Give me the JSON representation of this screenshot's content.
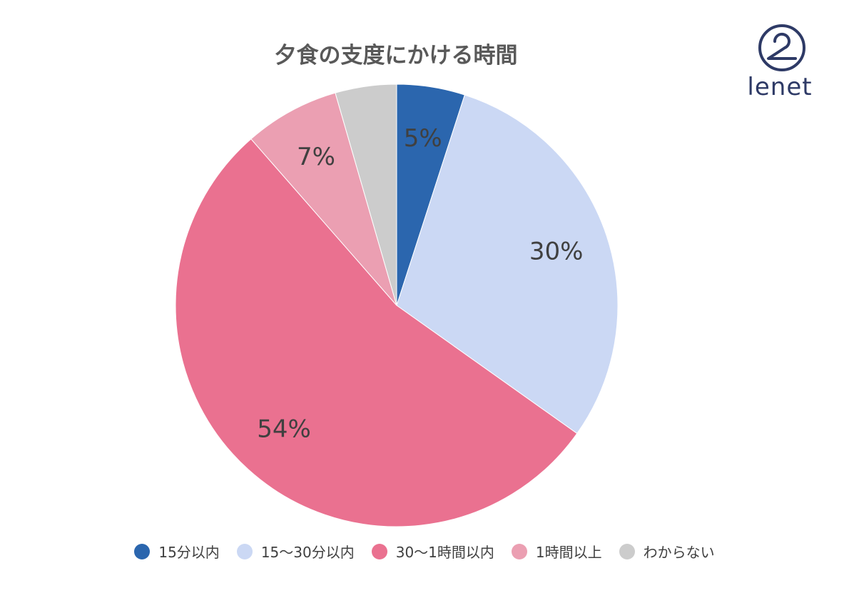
{
  "chart_data": {
    "type": "pie",
    "title": "夕食の支度にかける時間",
    "slices": [
      {
        "label": "15分以内",
        "value": 5,
        "display": "5%",
        "color": "#2b66ae"
      },
      {
        "label": "15〜30分以内",
        "value": 30,
        "display": "30%",
        "color": "#cbd8f4"
      },
      {
        "label": "30〜1時間以内",
        "value": 54,
        "display": "54%",
        "color": "#ea7190"
      },
      {
        "label": "1時間以上",
        "value": 7,
        "display": "7%",
        "color": "#eb9fb2"
      },
      {
        "label": "わからない",
        "value": 4.5,
        "display": "",
        "color": "#cccccc"
      }
    ],
    "legend_position": "bottom",
    "label_color": "#404040"
  },
  "logo": {
    "text": "lenet",
    "color": "#2e3a66"
  }
}
